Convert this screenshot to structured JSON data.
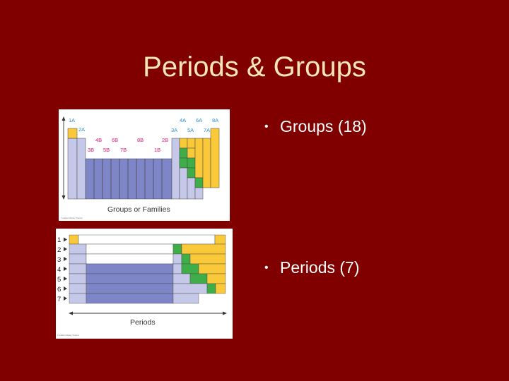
{
  "slide": {
    "title": "Periods & Groups",
    "bullets": [
      {
        "text": "Groups (18)"
      },
      {
        "text": "Periods (7)"
      }
    ]
  },
  "figure_groups": {
    "caption": "Groups or Families",
    "copyright": "© Addison-Wesley, Pearson",
    "labels_top": [
      "1A",
      "4A",
      "6A",
      "8A"
    ],
    "labels_mid": [
      "2A",
      "3A",
      "5A",
      "7A"
    ],
    "labels_b_upper": [
      "4B",
      "6B",
      "8B",
      "2B"
    ],
    "labels_b_lower": [
      "3B",
      "5B",
      "7B",
      "1B"
    ]
  },
  "figure_periods": {
    "caption": "Periods",
    "copyright": "© Addison-Wesley, Pearson",
    "period_numbers": [
      "1",
      "2",
      "3",
      "4",
      "5",
      "6",
      "7"
    ]
  },
  "colors": {
    "background": "#800000",
    "title": "#f5e6b8",
    "lavender": "#c5c8e8",
    "blue": "#7f86c8",
    "green": "#3fae49",
    "yellow": "#f9c93a"
  }
}
